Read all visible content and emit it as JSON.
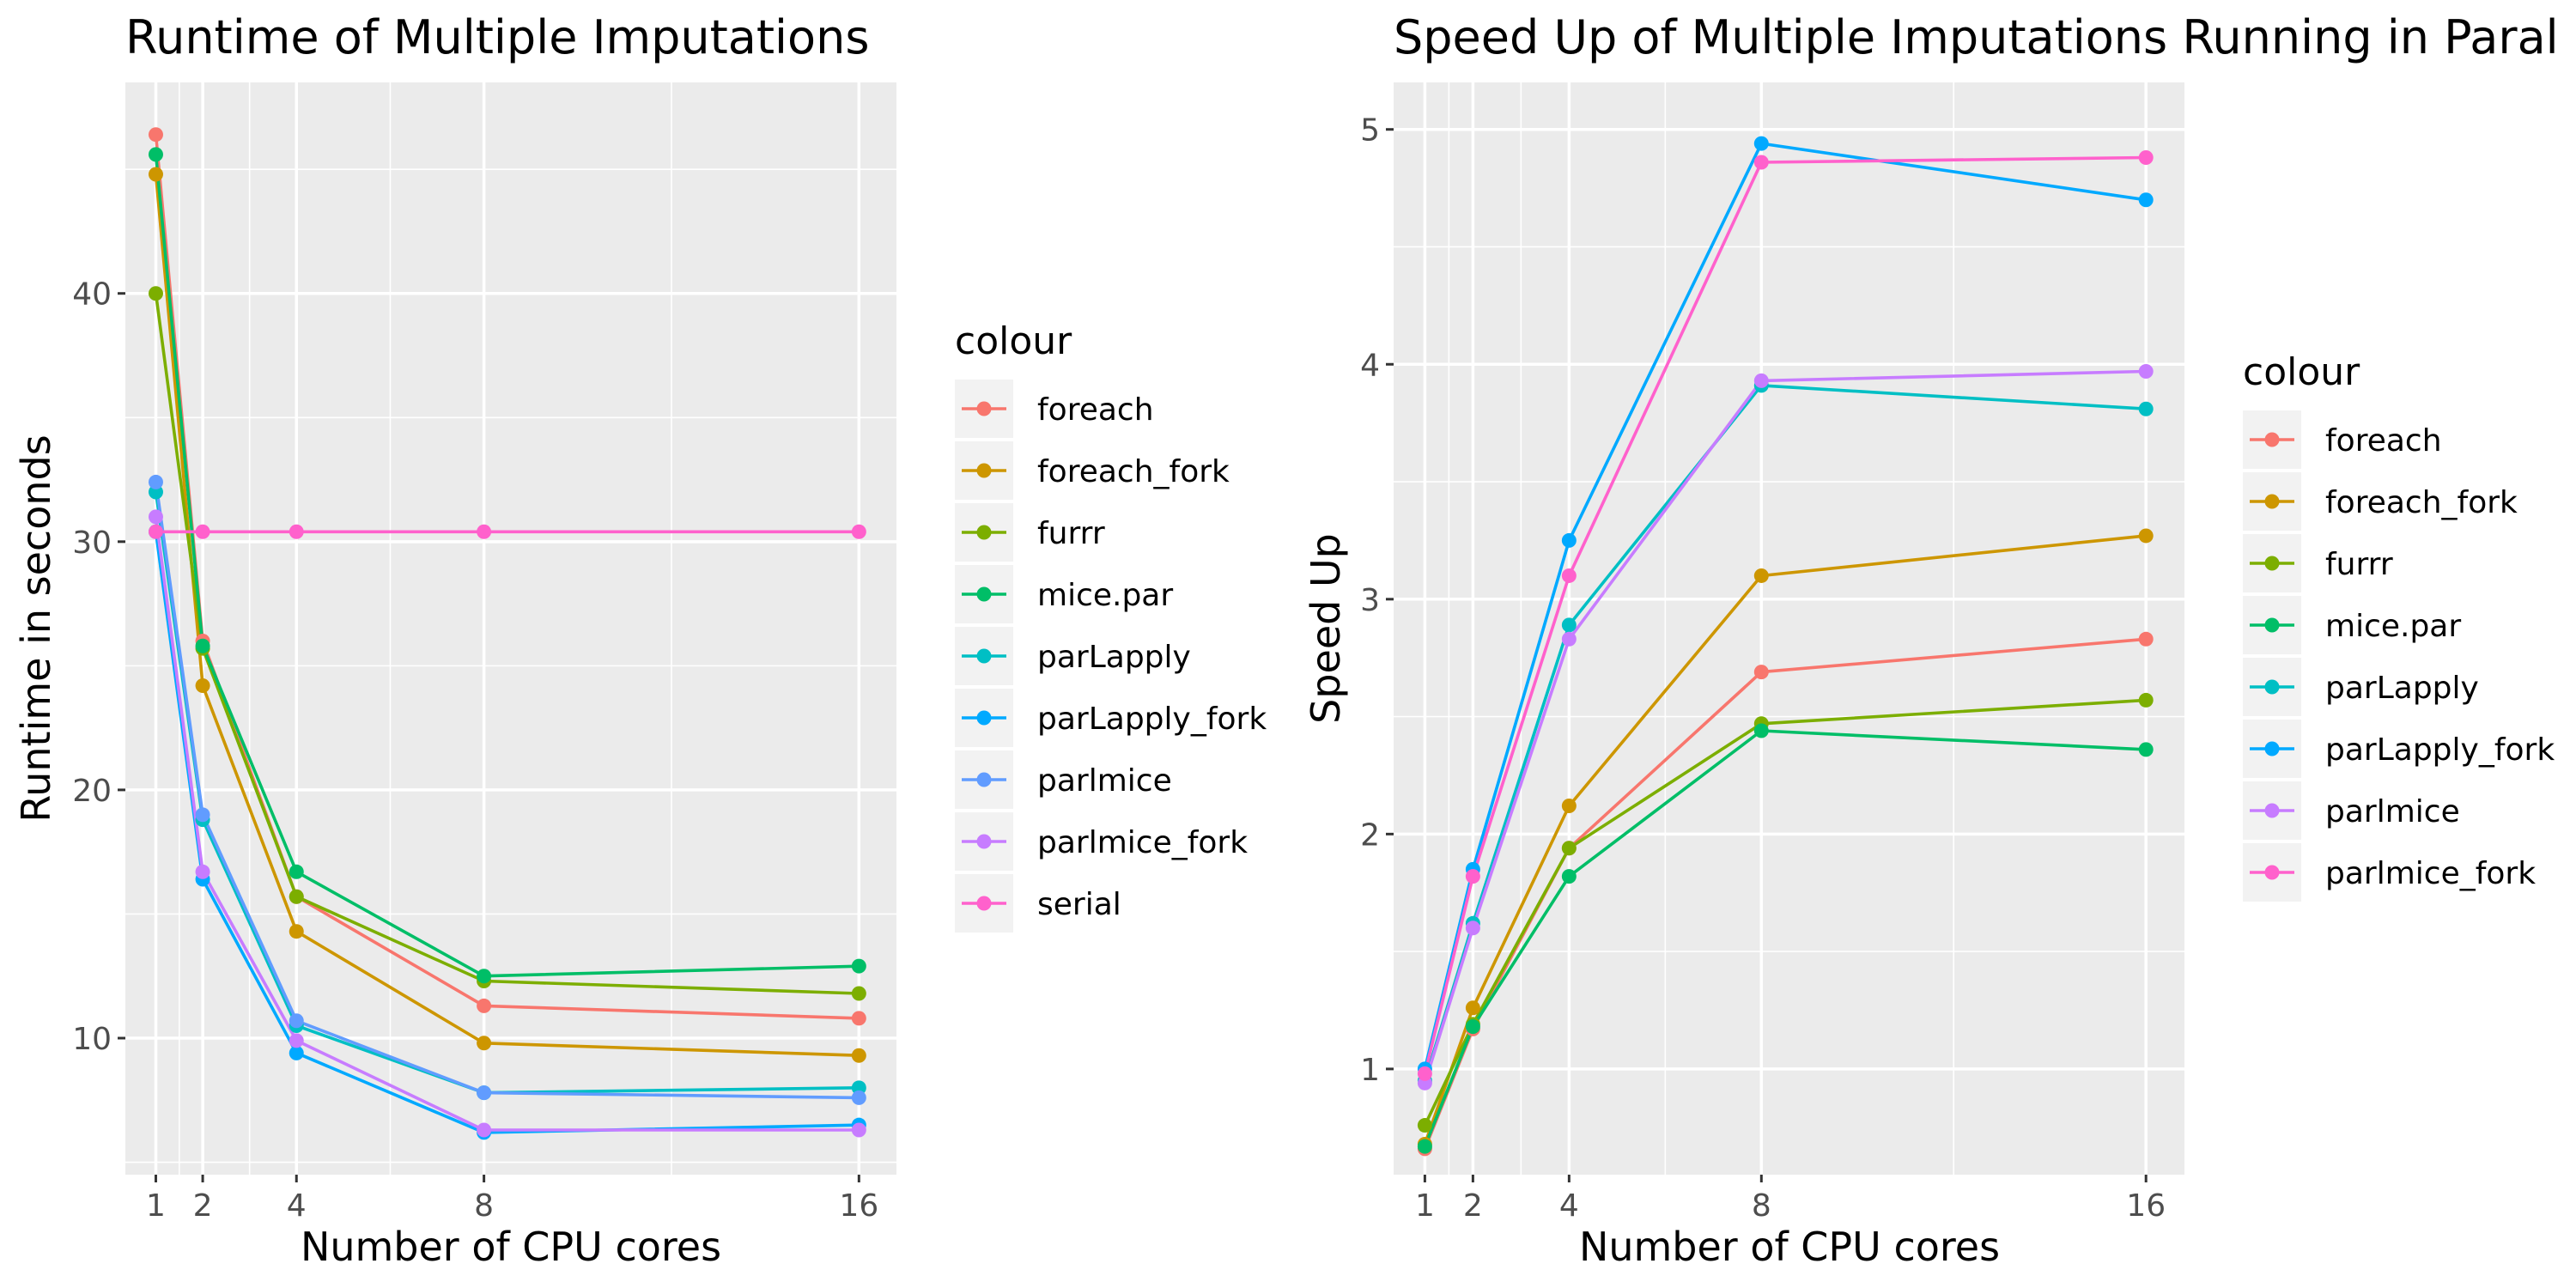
{
  "chart_data": [
    {
      "type": "line",
      "title": "Runtime of Multiple Imputations",
      "xlabel": "Number of CPU cores",
      "ylabel": "Runtime in seconds",
      "x": [
        1,
        2,
        4,
        8,
        16
      ],
      "xticks": [
        1,
        2,
        4,
        8,
        16
      ],
      "xlim": [
        0.35,
        16.8
      ],
      "yticks": [
        10,
        20,
        30,
        40
      ],
      "ylim": [
        4.5,
        48.5
      ],
      "grid": true,
      "legend": {
        "title": "colour",
        "placement": "right"
      },
      "series": [
        {
          "name": "foreach",
          "color": "#F8766D",
          "values": [
            46.4,
            26.0,
            15.7,
            11.3,
            10.8
          ]
        },
        {
          "name": "foreach_fork",
          "color": "#CD9600",
          "values": [
            44.8,
            24.2,
            14.3,
            9.8,
            9.3
          ]
        },
        {
          "name": "furrr",
          "color": "#7CAE00",
          "values": [
            40.0,
            25.7,
            15.7,
            12.3,
            11.8
          ]
        },
        {
          "name": "mice.par",
          "color": "#00BE67",
          "values": [
            45.6,
            25.8,
            16.7,
            12.5,
            12.9
          ]
        },
        {
          "name": "parLapply",
          "color": "#00BFC4",
          "values": [
            32.0,
            18.8,
            10.5,
            7.8,
            8.0
          ]
        },
        {
          "name": "parLapply_fork",
          "color": "#00A9FF",
          "values": [
            30.4,
            16.4,
            9.4,
            6.2,
            6.5
          ]
        },
        {
          "name": "parlmice",
          "color": "#619CFF",
          "values": [
            32.4,
            19.0,
            10.7,
            7.8,
            7.6
          ]
        },
        {
          "name": "parlmice_fork",
          "color": "#C77CFF",
          "values": [
            31.0,
            16.7,
            9.9,
            6.3,
            6.3
          ]
        },
        {
          "name": "serial",
          "color": "#FF61CC",
          "values": [
            30.4,
            30.4,
            30.4,
            30.4,
            30.4
          ]
        }
      ]
    },
    {
      "type": "line",
      "title": "Speed Up of Multiple Imputations Running in Paral",
      "xlabel": "Number of CPU cores",
      "ylabel": "Speed Up",
      "x": [
        1,
        2,
        4,
        8,
        16
      ],
      "xticks": [
        1,
        2,
        4,
        8,
        16
      ],
      "xlim": [
        0.35,
        16.8
      ],
      "yticks": [
        1,
        2,
        3,
        4,
        5
      ],
      "ylim": [
        0.55,
        5.2
      ],
      "grid": true,
      "legend": {
        "title": "colour",
        "placement": "right"
      },
      "series": [
        {
          "name": "foreach",
          "color": "#F8766D",
          "values": [
            0.66,
            1.17,
            1.94,
            2.69,
            2.83
          ]
        },
        {
          "name": "foreach_fork",
          "color": "#CD9600",
          "values": [
            0.68,
            1.26,
            2.12,
            3.1,
            3.27
          ]
        },
        {
          "name": "furrr",
          "color": "#7CAE00",
          "values": [
            0.76,
            1.19,
            1.94,
            2.47,
            2.57
          ]
        },
        {
          "name": "mice.par",
          "color": "#00BE67",
          "values": [
            0.67,
            1.18,
            1.82,
            2.44,
            2.36
          ]
        },
        {
          "name": "parLapply",
          "color": "#00BFC4",
          "values": [
            0.95,
            1.62,
            2.89,
            3.91,
            3.81
          ]
        },
        {
          "name": "parLapply_fork",
          "color": "#00A9FF",
          "values": [
            1.0,
            1.85,
            3.25,
            4.94,
            4.7
          ]
        },
        {
          "name": "parlmice",
          "color": "#C77CFF",
          "values": [
            0.94,
            1.6,
            2.83,
            3.93,
            3.97
          ]
        },
        {
          "name": "parlmice_fork",
          "color": "#FF61CC",
          "values": [
            0.98,
            1.82,
            3.1,
            4.86,
            4.88
          ]
        }
      ]
    }
  ]
}
